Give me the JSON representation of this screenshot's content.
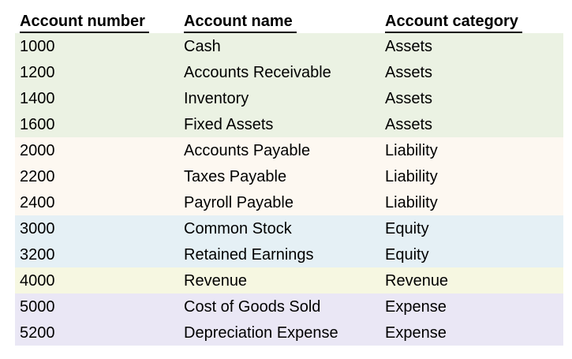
{
  "table": {
    "headers": [
      {
        "label": "Account number"
      },
      {
        "label": "Account name"
      },
      {
        "label": "Account category"
      }
    ],
    "rows": [
      {
        "number": "1000",
        "name": "Cash",
        "category": "Assets"
      },
      {
        "number": "1200",
        "name": "Accounts Receivable",
        "category": "Assets"
      },
      {
        "number": "1400",
        "name": "Inventory",
        "category": "Assets"
      },
      {
        "number": "1600",
        "name": "Fixed Assets",
        "category": "Assets"
      },
      {
        "number": "2000",
        "name": "Accounts Payable",
        "category": "Liability"
      },
      {
        "number": "2200",
        "name": "Taxes Payable",
        "category": "Liability"
      },
      {
        "number": "2400",
        "name": "Payroll Payable",
        "category": "Liability"
      },
      {
        "number": "3000",
        "name": "Common Stock",
        "category": "Equity"
      },
      {
        "number": "3200",
        "name": "Retained Earnings",
        "category": "Equity"
      },
      {
        "number": "4000",
        "name": "Revenue",
        "category": "Revenue"
      },
      {
        "number": "5000",
        "name": "Cost of Goods Sold",
        "category": "Expense"
      },
      {
        "number": "5200",
        "name": "Depreciation Expense",
        "category": "Expense"
      }
    ],
    "category_colors": {
      "Assets": "#ebf2e3",
      "Liability": "#fdf8f1",
      "Equity": "#e5f0f5",
      "Revenue": "#f6f7e1",
      "Expense": "#eae7f5"
    },
    "text_color": "#000000"
  }
}
